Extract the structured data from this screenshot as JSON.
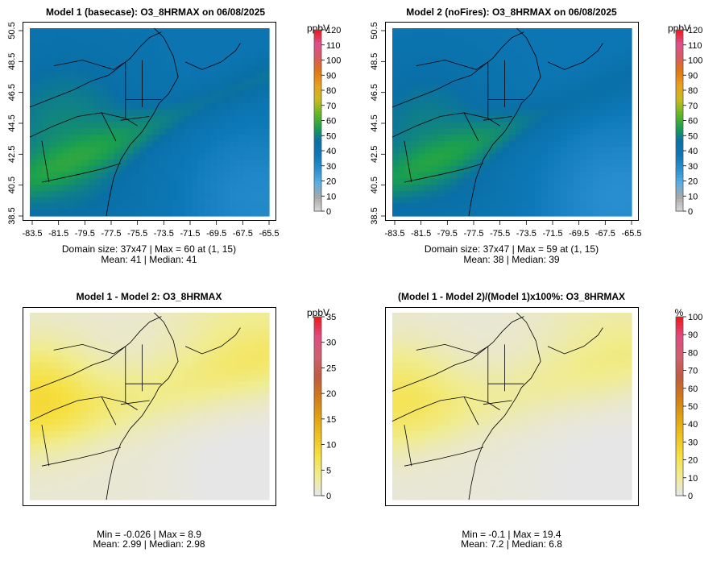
{
  "chart_data": [
    {
      "type": "heatmap",
      "title": "Model 1 (basecase): O3_8HRMAX on 06/08/2025",
      "unit": "ppbV",
      "stats": [
        "Domain size: 37x47 | Max = 60 at (1, 15)",
        "Mean: 41 |  Median: 41"
      ],
      "x_ticks": [
        "-83.5",
        "-81.5",
        "-79.5",
        "-77.5",
        "-75.5",
        "-73.5",
        "-71.5",
        "-69.5",
        "-67.5",
        "-65.5"
      ],
      "y_ticks": [
        "38.5",
        "40.5",
        "42.5",
        "44.5",
        "46.5",
        "48.5",
        "50.5"
      ],
      "colorbar_ticks": [
        "0",
        "10",
        "20",
        "30",
        "40",
        "50",
        "60",
        "70",
        "80",
        "90",
        "100",
        "110",
        "120"
      ],
      "colorbar_range": [
        0,
        120
      ],
      "colorbar_colors": [
        "#d8d8d8",
        "#a8a8a8",
        "#57b0e6",
        "#2a8fd0",
        "#0d78b8",
        "#0a6fa6",
        "#1aa04e",
        "#68b820",
        "#c8bc20",
        "#e8a020",
        "#e07810",
        "#d85a60",
        "#e04f8c",
        "#ec1818"
      ],
      "field_range": [
        30,
        60
      ],
      "field_mean": 41
    },
    {
      "type": "heatmap",
      "title": "Model 2 (noFires): O3_8HRMAX on 06/08/2025",
      "unit": "ppbV",
      "stats": [
        "Domain size: 37x47 | Max = 59 at (1, 15)",
        "Mean: 38 |  Median: 39"
      ],
      "x_ticks": [
        "-83.5",
        "-81.5",
        "-79.5",
        "-77.5",
        "-75.5",
        "-73.5",
        "-71.5",
        "-69.5",
        "-67.5",
        "-65.5"
      ],
      "y_ticks": [
        "38.5",
        "40.5",
        "42.5",
        "44.5",
        "46.5",
        "48.5",
        "50.5"
      ],
      "colorbar_ticks": [
        "0",
        "10",
        "20",
        "30",
        "40",
        "50",
        "60",
        "70",
        "80",
        "90",
        "100",
        "110",
        "120"
      ],
      "colorbar_range": [
        0,
        120
      ],
      "colorbar_colors": [
        "#d8d8d8",
        "#a8a8a8",
        "#57b0e6",
        "#2a8fd0",
        "#0d78b8",
        "#0a6fa6",
        "#1aa04e",
        "#68b820",
        "#c8bc20",
        "#e8a020",
        "#e07810",
        "#d85a60",
        "#e04f8c",
        "#ec1818"
      ],
      "field_range": [
        28,
        59
      ],
      "field_mean": 38
    },
    {
      "type": "heatmap",
      "title": "Model 1 - Model 2: O3_8HRMAX",
      "unit": "ppbV",
      "stats": [
        "Min = -0.026 | Max = 8.9",
        "Mean: 2.99 |  Median: 2.98"
      ],
      "colorbar_ticks": [
        "0",
        "5",
        "10",
        "15",
        "20",
        "25",
        "30",
        "35"
      ],
      "colorbar_range": [
        0,
        35
      ],
      "colorbar_colors": [
        "#e6e6e6",
        "#f0ec90",
        "#f6e040",
        "#f0c020",
        "#e0a010",
        "#d07818",
        "#c05a40",
        "#d06070",
        "#e04a80",
        "#f01818"
      ],
      "field_range": [
        0,
        8.9
      ],
      "field_mean": 2.99
    },
    {
      "type": "heatmap",
      "title": "(Model 1 - Model 2)/(Model 1)x100%: O3_8HRMAX",
      "unit": "%",
      "stats": [
        "Min = -0.1 | Max = 19.4",
        "Mean: 7.2 |  Median: 6.8"
      ],
      "colorbar_ticks": [
        "0",
        "10",
        "20",
        "30",
        "40",
        "50",
        "60",
        "70",
        "80",
        "90",
        "100"
      ],
      "colorbar_range": [
        0,
        100
      ],
      "colorbar_colors": [
        "#e6e6e6",
        "#f0ec90",
        "#f6e040",
        "#f0c020",
        "#e0a010",
        "#d07818",
        "#c05a40",
        "#d06070",
        "#e04a80",
        "#f01818"
      ],
      "field_range": [
        0,
        19.4
      ],
      "field_mean": 7.2
    }
  ]
}
